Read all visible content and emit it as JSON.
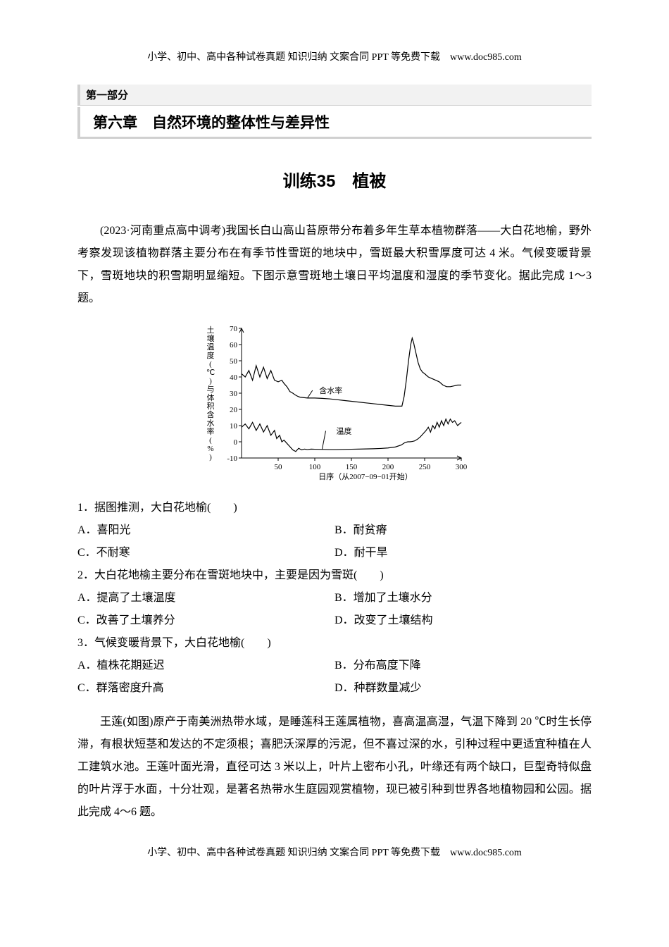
{
  "header_footer": "小学、初中、高中各种试卷真题 知识归纳 文案合同 PPT 等免费下载　www.doc985.com",
  "section_label": "第一部分",
  "chapter_title": "第六章　自然环境的整体性与差异性",
  "training_title": "训练35　植被",
  "passage1": "(2023·河南重点高中调考)我国长白山高山苔原带分布着多年生草本植物群落——大白花地榆，野外考察发现该植物群落主要分布在有季节性雪斑的地块中，雪斑最大积雪厚度可达 4 米。气候变暖背景下，雪斑地块的积雪期明显缩短。下图示意雪斑地土壤日平均温度和湿度的季节变化。据此完成 1～3 题。",
  "chart": {
    "type": "line",
    "background_color": "#ffffff",
    "axis_color": "#000000",
    "line_color": "#000000",
    "xlim": [
      0,
      300
    ],
    "xticks": [
      0,
      50,
      100,
      150,
      200,
      250,
      300
    ],
    "x_axis_label": "日序（从2007−09−01开始）",
    "ylim": [
      -10,
      70
    ],
    "yticks": [
      -10,
      0,
      10,
      20,
      30,
      40,
      50,
      60,
      70
    ],
    "y_axis_label": "土壤温度(℃)与体积含水率(%)",
    "series": [
      {
        "name": "含水率",
        "label_pos": [
          95,
          30
        ],
        "points": [
          [
            0,
            42
          ],
          [
            5,
            40
          ],
          [
            10,
            44
          ],
          [
            15,
            38
          ],
          [
            20,
            47
          ],
          [
            25,
            40
          ],
          [
            30,
            46
          ],
          [
            35,
            39
          ],
          [
            40,
            44
          ],
          [
            45,
            38
          ],
          [
            50,
            37
          ],
          [
            55,
            38
          ],
          [
            58,
            36
          ],
          [
            62,
            34
          ],
          [
            66,
            31
          ],
          [
            70,
            30
          ],
          [
            73,
            29
          ],
          [
            77,
            28
          ],
          [
            80,
            27.5
          ],
          [
            90,
            27
          ],
          [
            100,
            27
          ],
          [
            110,
            26.8
          ],
          [
            120,
            26.5
          ],
          [
            130,
            26
          ],
          [
            140,
            25.5
          ],
          [
            150,
            25
          ],
          [
            160,
            24.5
          ],
          [
            170,
            24
          ],
          [
            180,
            23.5
          ],
          [
            190,
            23
          ],
          [
            200,
            22.5
          ],
          [
            210,
            22
          ],
          [
            215,
            22
          ],
          [
            219,
            22
          ],
          [
            222,
            28
          ],
          [
            225,
            38
          ],
          [
            228,
            50
          ],
          [
            231,
            60
          ],
          [
            233,
            64
          ],
          [
            235,
            61
          ],
          [
            238,
            55
          ],
          [
            241,
            49
          ],
          [
            244,
            45
          ],
          [
            247,
            43
          ],
          [
            250,
            42
          ],
          [
            255,
            40
          ],
          [
            260,
            39
          ],
          [
            265,
            38
          ],
          [
            270,
            37
          ],
          [
            275,
            35
          ],
          [
            280,
            34
          ],
          [
            285,
            34
          ],
          [
            290,
            34.5
          ],
          [
            295,
            35
          ],
          [
            300,
            35
          ]
        ]
      },
      {
        "name": "温度",
        "label_pos": [
          113,
          5
        ],
        "points": [
          [
            0,
            9
          ],
          [
            5,
            11
          ],
          [
            10,
            8
          ],
          [
            15,
            12
          ],
          [
            20,
            7
          ],
          [
            25,
            11
          ],
          [
            30,
            6
          ],
          [
            35,
            10
          ],
          [
            40,
            4
          ],
          [
            45,
            7
          ],
          [
            48,
            2
          ],
          [
            52,
            4
          ],
          [
            55,
            0
          ],
          [
            58,
            1
          ],
          [
            62,
            -1
          ],
          [
            66,
            -3
          ],
          [
            70,
            -5
          ],
          [
            74,
            -6
          ],
          [
            78,
            -4
          ],
          [
            82,
            -5
          ],
          [
            86,
            -4.5
          ],
          [
            90,
            -4.8
          ],
          [
            95,
            -4.5
          ],
          [
            100,
            -4.6
          ],
          [
            110,
            -4.7
          ],
          [
            120,
            -4.8
          ],
          [
            130,
            -4.8
          ],
          [
            140,
            -4.7
          ],
          [
            150,
            -4.6
          ],
          [
            160,
            -4.5
          ],
          [
            170,
            -4.4
          ],
          [
            180,
            -4.3
          ],
          [
            190,
            -4.1
          ],
          [
            200,
            -3.8
          ],
          [
            210,
            -3.2
          ],
          [
            218,
            -2
          ],
          [
            223,
            -0.5
          ],
          [
            227,
            0
          ],
          [
            230,
            0
          ],
          [
            233,
            0.2
          ],
          [
            236,
            0.5
          ],
          [
            240,
            1.5
          ],
          [
            244,
            3
          ],
          [
            248,
            5
          ],
          [
            252,
            7
          ],
          [
            255,
            9
          ],
          [
            258,
            6
          ],
          [
            261,
            10
          ],
          [
            264,
            8
          ],
          [
            267,
            12
          ],
          [
            270,
            9
          ],
          [
            273,
            13
          ],
          [
            276,
            10
          ],
          [
            279,
            14
          ],
          [
            282,
            11
          ],
          [
            285,
            14
          ],
          [
            288,
            12
          ],
          [
            291,
            13
          ],
          [
            295,
            10
          ],
          [
            300,
            12
          ]
        ]
      }
    ]
  },
  "q1": {
    "stem": "1．据图推测，大白花地榆(　　)",
    "A": "A．喜阳光",
    "B": "B．耐贫瘠",
    "C": "C．不耐寒",
    "D": "D．耐干旱"
  },
  "q2": {
    "stem": "2．大白花地榆主要分布在雪斑地块中，主要是因为雪斑(　　)",
    "A": "A．提高了土壤温度",
    "B": "B．增加了土壤水分",
    "C": "C．改善了土壤养分",
    "D": "D．改变了土壤结构"
  },
  "q3": {
    "stem": "3．气候变暖背景下，大白花地榆(　　)",
    "A": "A．植株花期延迟",
    "B": "B．分布高度下降",
    "C": "C．群落密度升高",
    "D": "D．种群数量减少"
  },
  "passage2": "王莲(如图)原产于南美洲热带水域，是睡莲科王莲属植物，喜高温高湿，气温下降到 20 ℃时生长停滞，有根状短茎和发达的不定须根；喜肥沃深厚的污泥，但不喜过深的水，引种过程中更适宜种植在人工建筑水池。王莲叶面光滑，直径可达 3 米以上，叶片上密布小孔，叶缘还有两个缺口，巨型奇特似盘的叶片浮于水面，十分壮观，是著名热带水生庭园观赏植物，现已被引种到世界各地植物园和公园。据此完成 4～6 题。"
}
